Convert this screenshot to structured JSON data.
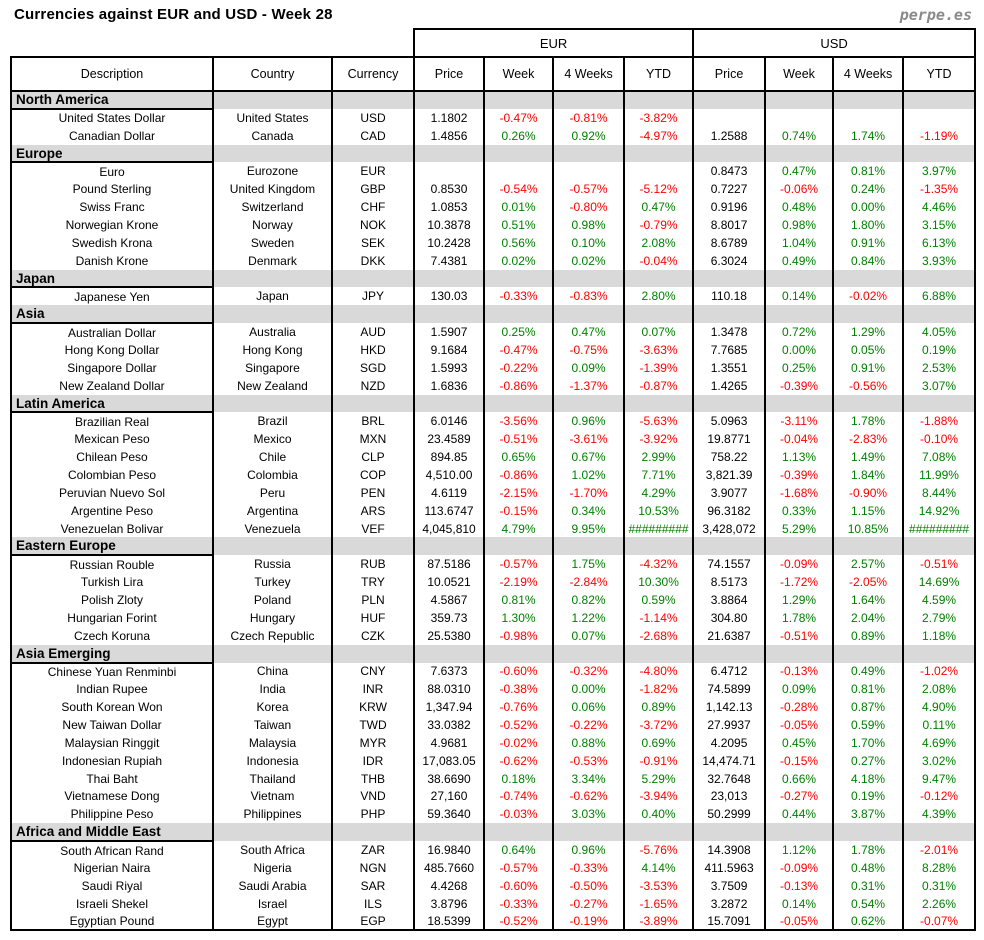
{
  "title": "Currencies against EUR and USD - Week 28",
  "logo": "perpe.es",
  "colors": {
    "positive": "#008000",
    "negative": "#ff0000",
    "section_bg": "#d9d9d9"
  },
  "table": {
    "group_headers": [
      "EUR",
      "USD"
    ],
    "columns": [
      "Description",
      "Country",
      "Currency",
      "Price",
      "Week",
      "4 Weeks",
      "YTD",
      "Price",
      "Week",
      "4 Weeks",
      "YTD"
    ],
    "sections": [
      {
        "name": "North America",
        "rows": [
          {
            "description": "United States Dollar",
            "country": "United States",
            "currency": "USD",
            "eur": [
              "1.1802",
              "-0.47%",
              "-0.81%",
              "-3.82%"
            ],
            "usd": [
              "",
              "",
              "",
              ""
            ]
          },
          {
            "description": "Canadian Dollar",
            "country": "Canada",
            "currency": "CAD",
            "eur": [
              "1.4856",
              "0.26%",
              "0.92%",
              "-4.97%"
            ],
            "usd": [
              "1.2588",
              "0.74%",
              "1.74%",
              "-1.19%"
            ]
          }
        ]
      },
      {
        "name": "Europe",
        "rows": [
          {
            "description": "Euro",
            "country": "Eurozone",
            "currency": "EUR",
            "eur": [
              "",
              "",
              "",
              ""
            ],
            "usd": [
              "0.8473",
              "0.47%",
              "0.81%",
              "3.97%"
            ]
          },
          {
            "description": "Pound Sterling",
            "country": "United Kingdom",
            "currency": "GBP",
            "eur": [
              "0.8530",
              "-0.54%",
              "-0.57%",
              "-5.12%"
            ],
            "usd": [
              "0.7227",
              "-0.06%",
              "0.24%",
              "-1.35%"
            ]
          },
          {
            "description": "Swiss Franc",
            "country": "Switzerland",
            "currency": "CHF",
            "eur": [
              "1.0853",
              "0.01%",
              "-0.80%",
              "0.47%"
            ],
            "usd": [
              "0.9196",
              "0.48%",
              "0.00%",
              "4.46%"
            ]
          },
          {
            "description": "Norwegian Krone",
            "country": "Norway",
            "currency": "NOK",
            "eur": [
              "10.3878",
              "0.51%",
              "0.98%",
              "-0.79%"
            ],
            "usd": [
              "8.8017",
              "0.98%",
              "1.80%",
              "3.15%"
            ]
          },
          {
            "description": "Swedish Krona",
            "country": "Sweden",
            "currency": "SEK",
            "eur": [
              "10.2428",
              "0.56%",
              "0.10%",
              "2.08%"
            ],
            "usd": [
              "8.6789",
              "1.04%",
              "0.91%",
              "6.13%"
            ]
          },
          {
            "description": "Danish Krone",
            "country": "Denmark",
            "currency": "DKK",
            "eur": [
              "7.4381",
              "0.02%",
              "0.02%",
              "-0.04%"
            ],
            "usd": [
              "6.3024",
              "0.49%",
              "0.84%",
              "3.93%"
            ]
          }
        ]
      },
      {
        "name": "Japan",
        "rows": [
          {
            "description": "Japanese Yen",
            "country": "Japan",
            "currency": "JPY",
            "eur": [
              "130.03",
              "-0.33%",
              "-0.83%",
              "2.80%"
            ],
            "usd": [
              "110.18",
              "0.14%",
              "-0.02%",
              "6.88%"
            ]
          }
        ]
      },
      {
        "name": "Asia",
        "rows": [
          {
            "description": "Australian Dollar",
            "country": "Australia",
            "currency": "AUD",
            "eur": [
              "1.5907",
              "0.25%",
              "0.47%",
              "0.07%"
            ],
            "usd": [
              "1.3478",
              "0.72%",
              "1.29%",
              "4.05%"
            ]
          },
          {
            "description": "Hong Kong Dollar",
            "country": "Hong Kong",
            "currency": "HKD",
            "eur": [
              "9.1684",
              "-0.47%",
              "-0.75%",
              "-3.63%"
            ],
            "usd": [
              "7.7685",
              "0.00%",
              "0.05%",
              "0.19%"
            ]
          },
          {
            "description": "Singapore Dollar",
            "country": "Singapore",
            "currency": "SGD",
            "eur": [
              "1.5993",
              "-0.22%",
              "0.09%",
              "-1.39%"
            ],
            "usd": [
              "1.3551",
              "0.25%",
              "0.91%",
              "2.53%"
            ]
          },
          {
            "description": "New Zealand Dollar",
            "country": "New Zealand",
            "currency": "NZD",
            "eur": [
              "1.6836",
              "-0.86%",
              "-1.37%",
              "-0.87%"
            ],
            "usd": [
              "1.4265",
              "-0.39%",
              "-0.56%",
              "3.07%"
            ]
          }
        ]
      },
      {
        "name": "Latin America",
        "rows": [
          {
            "description": "Brazilian Real",
            "country": "Brazil",
            "currency": "BRL",
            "eur": [
              "6.0146",
              "-3.56%",
              "0.96%",
              "-5.63%"
            ],
            "usd": [
              "5.0963",
              "-3.11%",
              "1.78%",
              "-1.88%"
            ]
          },
          {
            "description": "Mexican Peso",
            "country": "Mexico",
            "currency": "MXN",
            "eur": [
              "23.4589",
              "-0.51%",
              "-3.61%",
              "-3.92%"
            ],
            "usd": [
              "19.8771",
              "-0.04%",
              "-2.83%",
              "-0.10%"
            ]
          },
          {
            "description": "Chilean Peso",
            "country": "Chile",
            "currency": "CLP",
            "eur": [
              "894.85",
              "0.65%",
              "0.67%",
              "2.99%"
            ],
            "usd": [
              "758.22",
              "1.13%",
              "1.49%",
              "7.08%"
            ]
          },
          {
            "description": "Colombian Peso",
            "country": "Colombia",
            "currency": "COP",
            "eur": [
              "4,510.00",
              "-0.86%",
              "1.02%",
              "7.71%"
            ],
            "usd": [
              "3,821.39",
              "-0.39%",
              "1.84%",
              "11.99%"
            ]
          },
          {
            "description": "Peruvian Nuevo Sol",
            "country": "Peru",
            "currency": "PEN",
            "eur": [
              "4.6119",
              "-2.15%",
              "-1.70%",
              "4.29%"
            ],
            "usd": [
              "3.9077",
              "-1.68%",
              "-0.90%",
              "8.44%"
            ]
          },
          {
            "description": "Argentine Peso",
            "country": "Argentina",
            "currency": "ARS",
            "eur": [
              "113.6747",
              "-0.15%",
              "0.34%",
              "10.53%"
            ],
            "usd": [
              "96.3182",
              "0.33%",
              "1.15%",
              "14.92%"
            ]
          },
          {
            "description": "Venezuelan Bolivar",
            "country": "Venezuela",
            "currency": "VEF",
            "eur": [
              "4,045,810",
              "4.79%",
              "9.95%",
              "#########"
            ],
            "usd": [
              "3,428,072",
              "5.29%",
              "10.85%",
              "#########"
            ]
          }
        ]
      },
      {
        "name": "Eastern Europe",
        "rows": [
          {
            "description": "Russian Rouble",
            "country": "Russia",
            "currency": "RUB",
            "eur": [
              "87.5186",
              "-0.57%",
              "1.75%",
              "-4.32%"
            ],
            "usd": [
              "74.1557",
              "-0.09%",
              "2.57%",
              "-0.51%"
            ]
          },
          {
            "description": "Turkish Lira",
            "country": "Turkey",
            "currency": "TRY",
            "eur": [
              "10.0521",
              "-2.19%",
              "-2.84%",
              "10.30%"
            ],
            "usd": [
              "8.5173",
              "-1.72%",
              "-2.05%",
              "14.69%"
            ]
          },
          {
            "description": "Polish Zloty",
            "country": "Poland",
            "currency": "PLN",
            "eur": [
              "4.5867",
              "0.81%",
              "0.82%",
              "0.59%"
            ],
            "usd": [
              "3.8864",
              "1.29%",
              "1.64%",
              "4.59%"
            ]
          },
          {
            "description": "Hungarian Forint",
            "country": "Hungary",
            "currency": "HUF",
            "eur": [
              "359.73",
              "1.30%",
              "1.22%",
              "-1.14%"
            ],
            "usd": [
              "304.80",
              "1.78%",
              "2.04%",
              "2.79%"
            ]
          },
          {
            "description": "Czech Koruna",
            "country": "Czech Republic",
            "currency": "CZK",
            "eur": [
              "25.5380",
              "-0.98%",
              "0.07%",
              "-2.68%"
            ],
            "usd": [
              "21.6387",
              "-0.51%",
              "0.89%",
              "1.18%"
            ]
          }
        ]
      },
      {
        "name": "Asia Emerging",
        "rows": [
          {
            "description": "Chinese Yuan Renminbi",
            "country": "China",
            "currency": "CNY",
            "eur": [
              "7.6373",
              "-0.60%",
              "-0.32%",
              "-4.80%"
            ],
            "usd": [
              "6.4712",
              "-0.13%",
              "0.49%",
              "-1.02%"
            ]
          },
          {
            "description": "Indian Rupee",
            "country": "India",
            "currency": "INR",
            "eur": [
              "88.0310",
              "-0.38%",
              "0.00%",
              "-1.82%"
            ],
            "usd": [
              "74.5899",
              "0.09%",
              "0.81%",
              "2.08%"
            ]
          },
          {
            "description": "South Korean Won",
            "country": "Korea",
            "currency": "KRW",
            "eur": [
              "1,347.94",
              "-0.76%",
              "0.06%",
              "0.89%"
            ],
            "usd": [
              "1,142.13",
              "-0.28%",
              "0.87%",
              "4.90%"
            ]
          },
          {
            "description": "New Taiwan Dollar",
            "country": "Taiwan",
            "currency": "TWD",
            "eur": [
              "33.0382",
              "-0.52%",
              "-0.22%",
              "-3.72%"
            ],
            "usd": [
              "27.9937",
              "-0.05%",
              "0.59%",
              "0.11%"
            ]
          },
          {
            "description": "Malaysian Ringgit",
            "country": "Malaysia",
            "currency": "MYR",
            "eur": [
              "4.9681",
              "-0.02%",
              "0.88%",
              "0.69%"
            ],
            "usd": [
              "4.2095",
              "0.45%",
              "1.70%",
              "4.69%"
            ]
          },
          {
            "description": "Indonesian Rupiah",
            "country": "Indonesia",
            "currency": "IDR",
            "eur": [
              "17,083.05",
              "-0.62%",
              "-0.53%",
              "-0.91%"
            ],
            "usd": [
              "14,474.71",
              "-0.15%",
              "0.27%",
              "3.02%"
            ]
          },
          {
            "description": "Thai Baht",
            "country": "Thailand",
            "currency": "THB",
            "eur": [
              "38.6690",
              "0.18%",
              "3.34%",
              "5.29%"
            ],
            "usd": [
              "32.7648",
              "0.66%",
              "4.18%",
              "9.47%"
            ]
          },
          {
            "description": "Vietnamese Dong",
            "country": "Vietnam",
            "currency": "VND",
            "eur": [
              "27,160",
              "-0.74%",
              "-0.62%",
              "-3.94%"
            ],
            "usd": [
              "23,013",
              "-0.27%",
              "0.19%",
              "-0.12%"
            ]
          },
          {
            "description": "Philippine Peso",
            "country": "Philippines",
            "currency": "PHP",
            "eur": [
              "59.3640",
              "-0.03%",
              "3.03%",
              "0.40%"
            ],
            "usd": [
              "50.2999",
              "0.44%",
              "3.87%",
              "4.39%"
            ]
          }
        ]
      },
      {
        "name": "Africa and Middle East",
        "rows": [
          {
            "description": "South African Rand",
            "country": "South Africa",
            "currency": "ZAR",
            "eur": [
              "16.9840",
              "0.64%",
              "0.96%",
              "-5.76%"
            ],
            "usd": [
              "14.3908",
              "1.12%",
              "1.78%",
              "-2.01%"
            ]
          },
          {
            "description": "Nigerian Naira",
            "country": "Nigeria",
            "currency": "NGN",
            "eur": [
              "485.7660",
              "-0.57%",
              "-0.33%",
              "4.14%"
            ],
            "usd": [
              "411.5963",
              "-0.09%",
              "0.48%",
              "8.28%"
            ]
          },
          {
            "description": "Saudi Riyal",
            "country": "Saudi Arabia",
            "currency": "SAR",
            "eur": [
              "4.4268",
              "-0.60%",
              "-0.50%",
              "-3.53%"
            ],
            "usd": [
              "3.7509",
              "-0.13%",
              "0.31%",
              "0.31%"
            ]
          },
          {
            "description": "Israeli Shekel",
            "country": "Israel",
            "currency": "ILS",
            "eur": [
              "3.8796",
              "-0.33%",
              "-0.27%",
              "-1.65%"
            ],
            "usd": [
              "3.2872",
              "0.14%",
              "0.54%",
              "2.26%"
            ]
          },
          {
            "description": "Egyptian Pound",
            "country": "Egypt",
            "currency": "EGP",
            "eur": [
              "18.5399",
              "-0.52%",
              "-0.19%",
              "-3.89%"
            ],
            "usd": [
              "15.7091",
              "-0.05%",
              "0.62%",
              "-0.07%"
            ]
          }
        ]
      }
    ]
  }
}
